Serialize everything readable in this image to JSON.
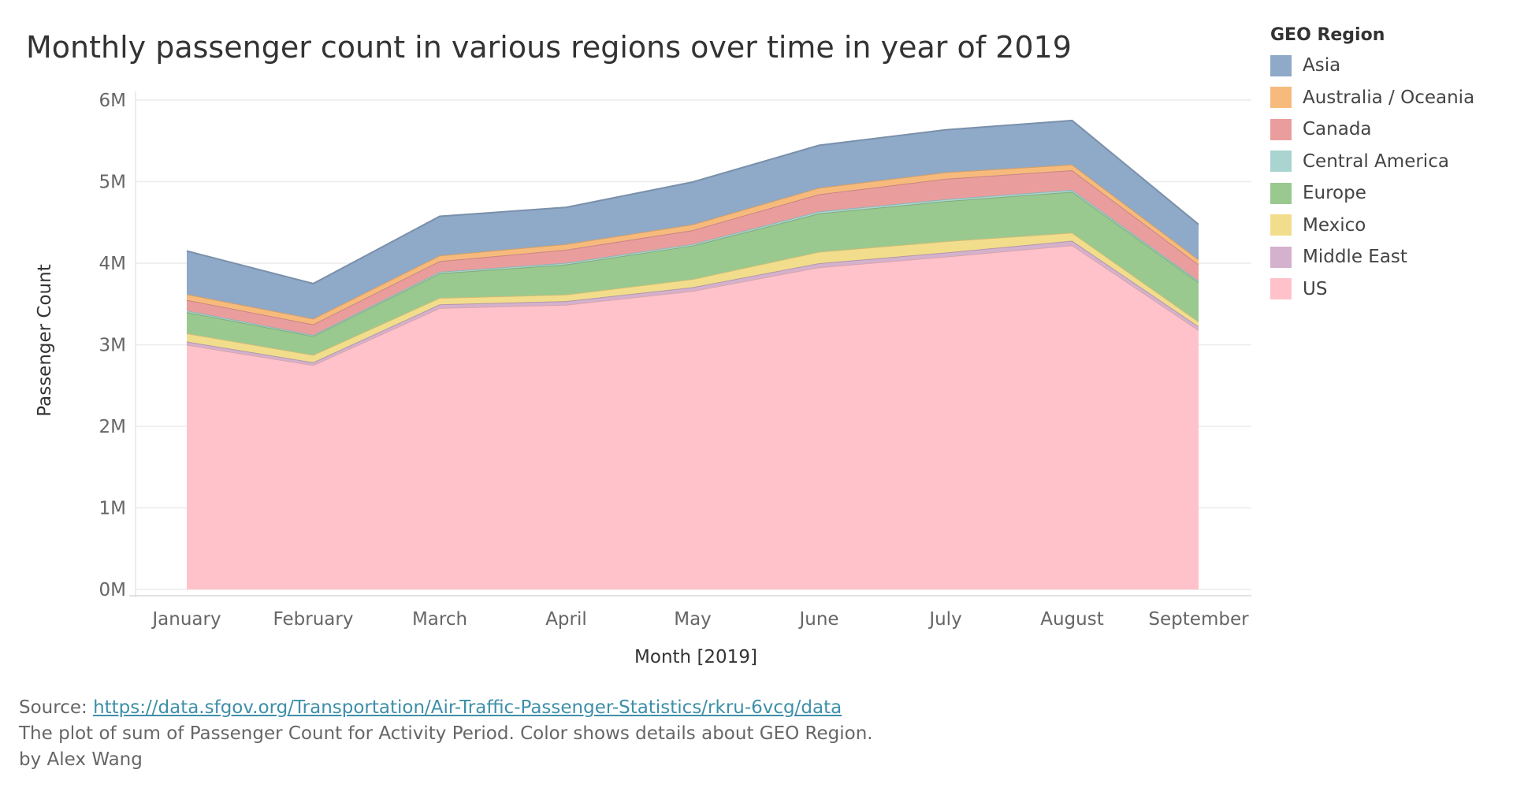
{
  "title": "Monthly passenger count in various regions over time in year of 2019",
  "legend": {
    "title": "GEO Region",
    "items": [
      {
        "label": "Asia",
        "color": "#8fa9c8"
      },
      {
        "label": "Australia / Oceania",
        "color": "#f6bb7c"
      },
      {
        "label": "Canada",
        "color": "#ea9d9d"
      },
      {
        "label": "Central America",
        "color": "#a9d4d0"
      },
      {
        "label": "Europe",
        "color": "#99c98f"
      },
      {
        "label": "Mexico",
        "color": "#f2dd8c"
      },
      {
        "label": "Middle East",
        "color": "#d4b1cc"
      },
      {
        "label": "US",
        "color": "#ffc2ca"
      }
    ]
  },
  "footer": {
    "source_label": "Source:",
    "source_link": "https://data.sfgov.org/Transportation/Air-Traffic-Passenger-Statistics/rkru-6vcg/data",
    "description": "The plot of sum of Passenger Count for Activity Period.  Color shows details about GEO Region.",
    "byline": "by Alex Wang"
  },
  "chart_data": {
    "type": "area",
    "stacked": true,
    "title": "Monthly passenger count in various regions over time in year of 2019",
    "xlabel": "Month [2019]",
    "ylabel": "Passenger Count",
    "ylim": [
      0,
      6000000
    ],
    "yticks": [
      0,
      1000000,
      2000000,
      3000000,
      4000000,
      5000000,
      6000000
    ],
    "ytick_labels": [
      "0M",
      "1M",
      "2M",
      "3M",
      "4M",
      "5M",
      "6M"
    ],
    "categories": [
      "January",
      "February",
      "March",
      "April",
      "May",
      "June",
      "July",
      "August",
      "September"
    ],
    "grid": "horizontal",
    "legend_position": "right",
    "series": [
      {
        "name": "US",
        "color": "#ffc2ca",
        "values": [
          3000000,
          2750000,
          3450000,
          3490000,
          3660000,
          3950000,
          4080000,
          4220000,
          3180000
        ]
      },
      {
        "name": "Middle East",
        "color": "#d4b1cc",
        "values": [
          40000,
          35000,
          45000,
          45000,
          45000,
          50000,
          50000,
          55000,
          45000
        ]
      },
      {
        "name": "Mexico",
        "color": "#f2dd8c",
        "values": [
          100000,
          90000,
          80000,
          80000,
          100000,
          140000,
          140000,
          100000,
          60000
        ]
      },
      {
        "name": "Europe",
        "color": "#99c98f",
        "values": [
          260000,
          230000,
          300000,
          370000,
          410000,
          470000,
          490000,
          500000,
          480000
        ]
      },
      {
        "name": "Central America",
        "color": "#a9d4d0",
        "values": [
          20000,
          15000,
          20000,
          20000,
          20000,
          25000,
          25000,
          25000,
          20000
        ]
      },
      {
        "name": "Canada",
        "color": "#ea9d9d",
        "values": [
          130000,
          130000,
          130000,
          160000,
          170000,
          210000,
          250000,
          240000,
          200000
        ]
      },
      {
        "name": "Australia / Oceania",
        "color": "#f6bb7c",
        "values": [
          70000,
          70000,
          70000,
          70000,
          70000,
          80000,
          80000,
          70000,
          60000
        ]
      },
      {
        "name": "Asia",
        "color": "#8fa9c8",
        "values": [
          530000,
          430000,
          480000,
          450000,
          520000,
          520000,
          520000,
          540000,
          430000
        ]
      }
    ]
  }
}
